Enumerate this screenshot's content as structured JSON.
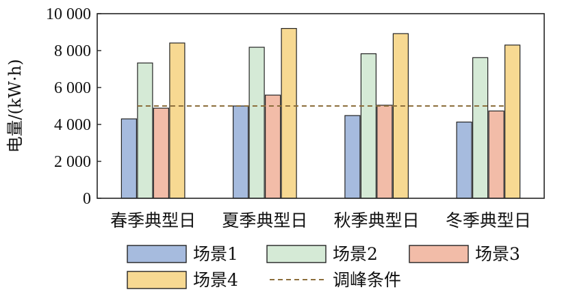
{
  "chart_data": {
    "type": "bar",
    "title": "",
    "xlabel": "",
    "ylabel": "电量/(kW·h)",
    "ylim": [
      0,
      10000
    ],
    "y_ticks": [
      0,
      2000,
      4000,
      6000,
      8000,
      10000
    ],
    "y_tick_labels": [
      "0",
      "2 000",
      "4 000",
      "6 000",
      "8 000",
      "10 000"
    ],
    "categories": [
      "春季典型日",
      "夏季典型日",
      "秋季典型日",
      "冬季典型日"
    ],
    "series": [
      {
        "name": "场景1",
        "color": "#a6bbde",
        "values": [
          4300,
          5000,
          4480,
          4130
        ]
      },
      {
        "name": "场景2",
        "color": "#d5ead6",
        "values": [
          7330,
          8180,
          7830,
          7620
        ]
      },
      {
        "name": "场景3",
        "color": "#f2bca8",
        "values": [
          4880,
          5590,
          5040,
          4730
        ]
      },
      {
        "name": "场景4",
        "color": "#f7d992",
        "values": [
          8410,
          9200,
          8920,
          8300
        ]
      }
    ],
    "reference_line": {
      "name": "调峰条件",
      "value": 5000,
      "color": "#8b6d3a",
      "style": "dashed"
    },
    "grid": false,
    "legend_position": "bottom"
  }
}
